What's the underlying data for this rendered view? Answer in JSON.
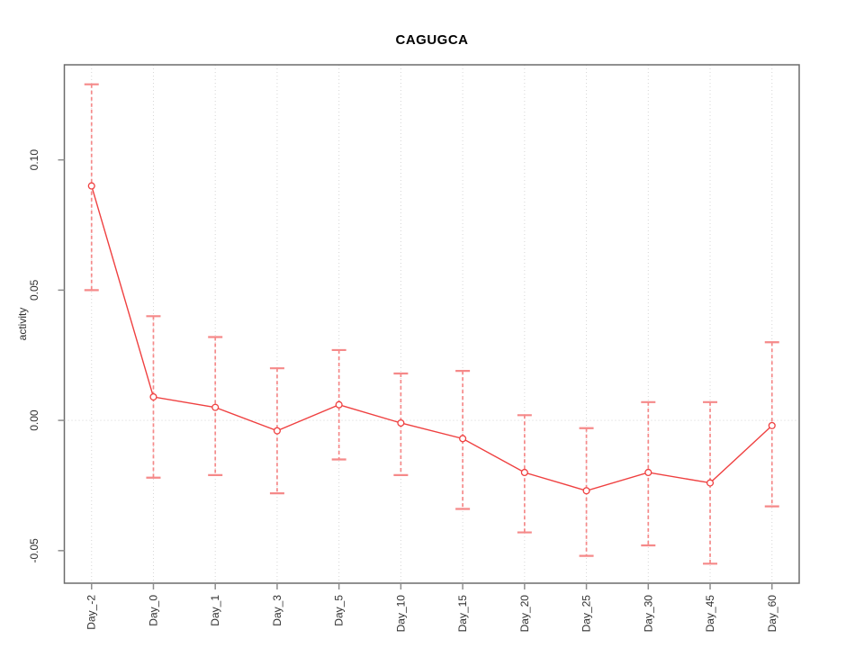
{
  "page": {
    "background": "#ffffff"
  },
  "chart_data": {
    "type": "line",
    "subtype": "errorbar-line",
    "title": "CAGUGCA",
    "xlabel": "",
    "ylabel": "activity",
    "categories": [
      "Day_-2",
      "Day_0",
      "Day_1",
      "Day_3",
      "Day_5",
      "Day_10",
      "Day_15",
      "Day_20",
      "Day_25",
      "Day_30",
      "Day_45",
      "Day_60"
    ],
    "values": [
      0.09,
      0.009,
      0.005,
      -0.004,
      0.006,
      -0.001,
      -0.007,
      -0.02,
      -0.027,
      -0.02,
      -0.024,
      -0.002
    ],
    "error_upper": [
      0.129,
      0.04,
      0.032,
      0.02,
      0.027,
      0.018,
      0.019,
      0.002,
      -0.003,
      0.007,
      0.007,
      0.03
    ],
    "error_lower": [
      0.05,
      -0.022,
      -0.021,
      -0.028,
      -0.015,
      -0.021,
      -0.034,
      -0.043,
      -0.052,
      -0.048,
      -0.055,
      -0.033
    ],
    "yticks": [
      -0.05,
      0.0,
      0.05,
      0.1
    ],
    "ylim": [
      -0.0625,
      0.1365
    ],
    "grid": {
      "vertical": "dotted line at every category",
      "horizontal": "dotted line at y=0",
      "style": "dotted"
    },
    "legend": "none",
    "marker": "open-circle",
    "colors": {
      "series": "#ef4040",
      "error_bar": "#f58989",
      "point_fill": "#ffffff",
      "grid": "#d6d6d6",
      "axis": "#6b6b6b",
      "tick": "#8e8e8e",
      "text": "#303030",
      "title": "#000000",
      "background": "#ffffff"
    }
  }
}
